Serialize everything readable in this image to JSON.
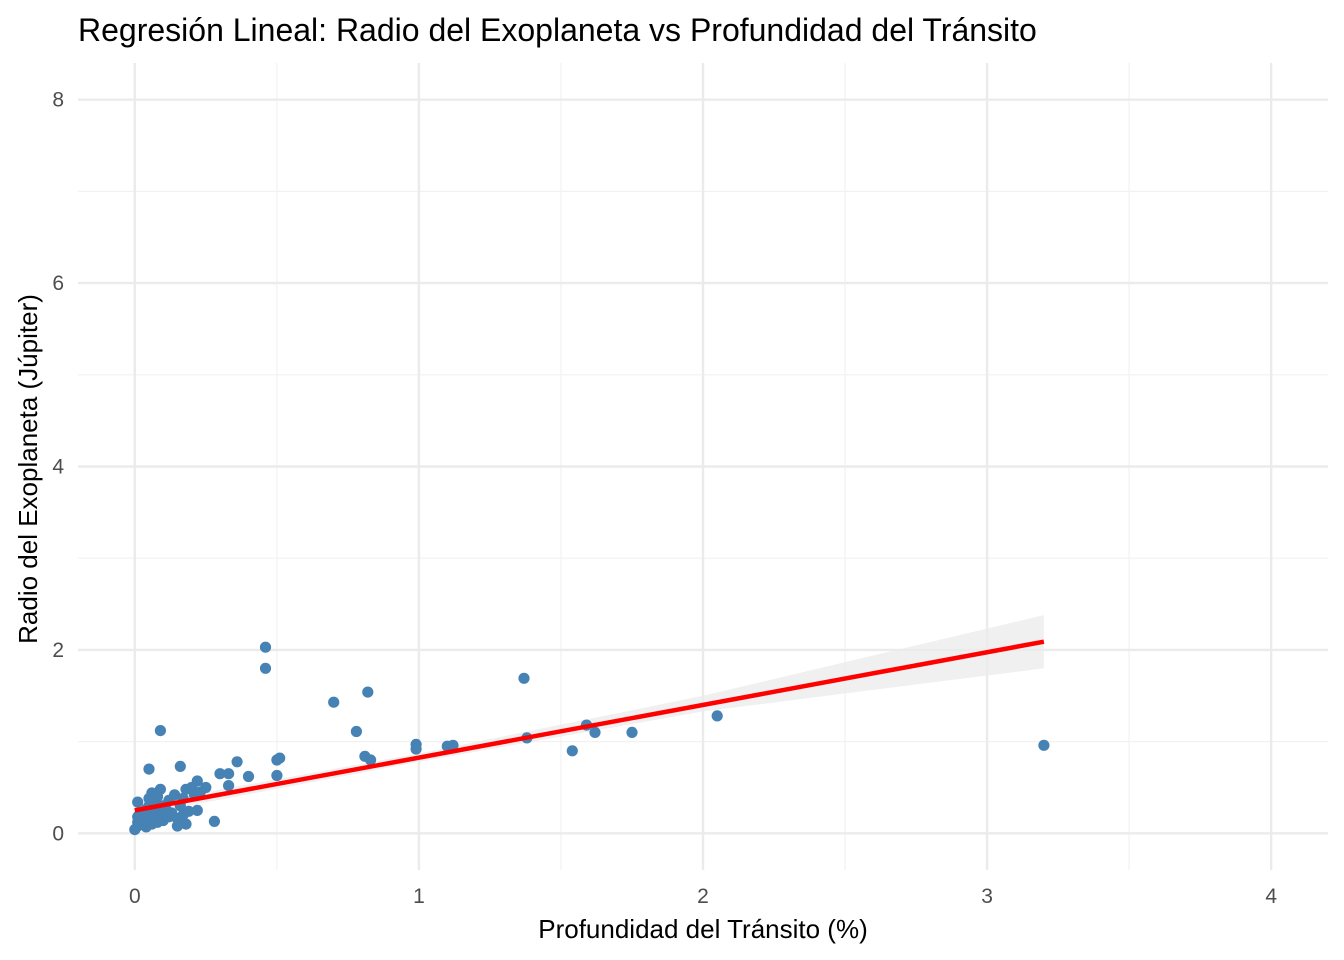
{
  "chart_data": {
    "type": "scatter",
    "title": "Regresión Lineal: Radio del Exoplaneta vs Profundidad del Tránsito",
    "xlabel": "Profundidad del Tránsito (%)",
    "ylabel": "Radio del Exoplaneta (Júpiter)",
    "xlim": [
      -0.2,
      4.2
    ],
    "ylim": [
      -0.4,
      8.4
    ],
    "x_ticks": [
      0,
      1,
      2,
      3,
      4
    ],
    "x_tick_labels": [
      "0",
      "1",
      "2",
      "3",
      "4"
    ],
    "y_ticks": [
      0,
      2,
      4,
      6,
      8
    ],
    "y_tick_labels": [
      "0",
      "2",
      "4",
      "6",
      "8"
    ],
    "grid": true,
    "legend": "none",
    "point_color": "#4682B4",
    "fit_color": "#FF0000",
    "band_color": "#EBEBEB",
    "points": [
      [
        0.0,
        0.04
      ],
      [
        0.01,
        0.08
      ],
      [
        0.01,
        0.12
      ],
      [
        0.01,
        0.18
      ],
      [
        0.02,
        0.1
      ],
      [
        0.02,
        0.22
      ],
      [
        0.01,
        0.34
      ],
      [
        0.03,
        0.14
      ],
      [
        0.03,
        0.2
      ],
      [
        0.04,
        0.07
      ],
      [
        0.04,
        0.16
      ],
      [
        0.04,
        0.26
      ],
      [
        0.05,
        0.12
      ],
      [
        0.05,
        0.3
      ],
      [
        0.05,
        0.38
      ],
      [
        0.06,
        0.1
      ],
      [
        0.06,
        0.2
      ],
      [
        0.06,
        0.44
      ],
      [
        0.07,
        0.16
      ],
      [
        0.07,
        0.34
      ],
      [
        0.08,
        0.12
      ],
      [
        0.08,
        0.24
      ],
      [
        0.08,
        0.4
      ],
      [
        0.09,
        0.48
      ],
      [
        0.09,
        0.2
      ],
      [
        0.1,
        0.3
      ],
      [
        0.1,
        0.14
      ],
      [
        0.11,
        0.26
      ],
      [
        0.12,
        0.18
      ],
      [
        0.12,
        0.36
      ],
      [
        0.13,
        0.22
      ],
      [
        0.14,
        0.42
      ],
      [
        0.15,
        0.16
      ],
      [
        0.15,
        0.08
      ],
      [
        0.16,
        0.3
      ],
      [
        0.17,
        0.2
      ],
      [
        0.17,
        0.38
      ],
      [
        0.18,
        0.1
      ],
      [
        0.18,
        0.48
      ],
      [
        0.19,
        0.24
      ],
      [
        0.2,
        0.5
      ],
      [
        0.21,
        0.42
      ],
      [
        0.22,
        0.25
      ],
      [
        0.22,
        0.57
      ],
      [
        0.23,
        0.45
      ],
      [
        0.25,
        0.5
      ],
      [
        0.28,
        0.13
      ],
      [
        0.3,
        0.65
      ],
      [
        0.33,
        0.65
      ],
      [
        0.33,
        0.52
      ],
      [
        0.36,
        0.78
      ],
      [
        0.4,
        0.62
      ],
      [
        0.5,
        0.63
      ],
      [
        0.5,
        0.8
      ],
      [
        0.51,
        0.82
      ],
      [
        0.05,
        0.7
      ],
      [
        0.16,
        0.73
      ],
      [
        0.09,
        1.12
      ],
      [
        0.46,
        2.03
      ],
      [
        0.46,
        1.8
      ],
      [
        0.7,
        1.43
      ],
      [
        0.78,
        1.11
      ],
      [
        0.81,
        0.84
      ],
      [
        0.82,
        1.54
      ],
      [
        0.83,
        0.8
      ],
      [
        0.99,
        0.97
      ],
      [
        0.99,
        0.92
      ],
      [
        1.1,
        0.95
      ],
      [
        1.12,
        0.96
      ],
      [
        1.37,
        1.69
      ],
      [
        1.38,
        1.04
      ],
      [
        1.54,
        0.9
      ],
      [
        1.59,
        1.18
      ],
      [
        1.62,
        1.1
      ],
      [
        1.75,
        1.1
      ],
      [
        2.05,
        1.28
      ],
      [
        3.2,
        0.96
      ]
    ],
    "fit_line": {
      "x": [
        0.0,
        3.2
      ],
      "y": [
        0.25,
        2.09
      ]
    },
    "confidence_band": {
      "x": [
        0.0,
        1.0,
        2.0,
        3.2
      ],
      "lower": [
        0.19,
        0.78,
        1.33,
        1.8
      ],
      "upper": [
        0.31,
        0.87,
        1.5,
        2.38
      ]
    }
  }
}
